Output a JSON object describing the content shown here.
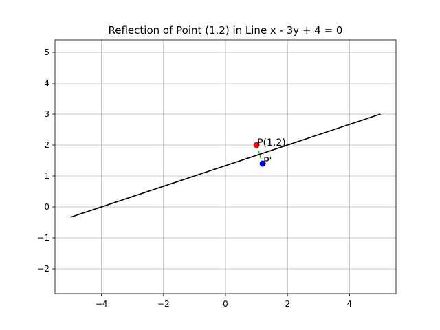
{
  "chart_data": {
    "type": "scatter",
    "title": "Reflection of Point (1,2) in Line x - 3y + 4 = 0",
    "xlabel": "",
    "ylabel": "",
    "xlim": [
      -5.5,
      5.5
    ],
    "ylim": [
      -2.8,
      5.4
    ],
    "x_ticks": [
      -4,
      -2,
      0,
      2,
      4
    ],
    "y_ticks": [
      -2,
      -1,
      0,
      1,
      2,
      3,
      4,
      5
    ],
    "x_tick_labels": [
      "−4",
      "−2",
      "0",
      "2",
      "4"
    ],
    "y_tick_labels": [
      "−2",
      "−1",
      "0",
      "1",
      "2",
      "3",
      "4",
      "5"
    ],
    "grid": true,
    "series": [
      {
        "kind": "line",
        "x": [
          -5,
          5
        ],
        "y": [
          -0.333,
          3
        ],
        "color": "#000000"
      },
      {
        "kind": "dashed",
        "x": [
          1,
          1.2
        ],
        "y": [
          2,
          1.4
        ],
        "color": "#2ca02c"
      },
      {
        "kind": "point",
        "x": [
          1
        ],
        "y": [
          2
        ],
        "color": "#ff0000"
      },
      {
        "kind": "point",
        "x": [
          1.2
        ],
        "y": [
          1.4
        ],
        "color": "#0000ff"
      }
    ],
    "annotations": [
      {
        "text": "P(1,2)",
        "x": 1,
        "y": 2
      },
      {
        "text": "P'",
        "x": 1.2,
        "y": 1.4
      }
    ]
  }
}
